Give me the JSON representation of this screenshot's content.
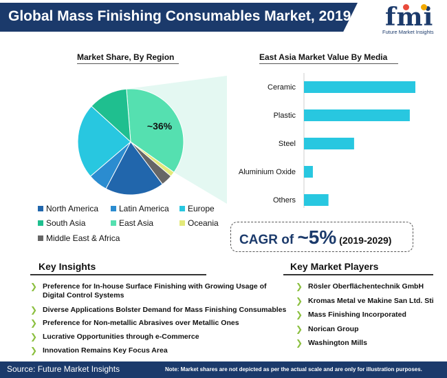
{
  "header": {
    "title": "Global Mass Finishing Consumables Market, 2019",
    "logo_word": "fmi",
    "logo_sub": "Future Market Insights"
  },
  "colors": {
    "brand_navy": "#1b3a6b",
    "north_america": "#2166ac",
    "latin_america": "#2b8cd0",
    "europe": "#28c7e0",
    "south_asia": "#1fbf8f",
    "east_asia": "#55e0b0",
    "oceania": "#e3e97a",
    "middle_east_africa": "#666666",
    "bar": "#28c7e0",
    "chevron": "#8bbf3f"
  },
  "chart_data": [
    {
      "type": "pie",
      "title": "Market Share, By Region",
      "annotation": "~36%",
      "slices": [
        {
          "label": "East Asia",
          "value": 36,
          "color": "#55e0b0"
        },
        {
          "label": "Oceania",
          "value": 1.5,
          "color": "#e3e97a"
        },
        {
          "label": "Middle East & Africa",
          "value": 3.5,
          "color": "#666666"
        },
        {
          "label": "North America",
          "value": 18,
          "color": "#2166ac"
        },
        {
          "label": "Latin America",
          "value": 6,
          "color": "#2b8cd0"
        },
        {
          "label": "Europe",
          "value": 23,
          "color": "#28c7e0"
        },
        {
          "label": "South Asia",
          "value": 12,
          "color": "#1fbf8f"
        }
      ],
      "legend": [
        {
          "label": "North America",
          "color": "#2166ac"
        },
        {
          "label": "Latin America",
          "color": "#2b8cd0"
        },
        {
          "label": "Europe",
          "color": "#28c7e0"
        },
        {
          "label": "South Asia",
          "color": "#1fbf8f"
        },
        {
          "label": "East Asia",
          "color": "#55e0b0"
        },
        {
          "label": "Oceania",
          "color": "#e3e97a"
        },
        {
          "label": "Middle East & Africa",
          "color": "#666666"
        }
      ],
      "legend_placement": "bottom"
    },
    {
      "type": "bar",
      "orientation": "horizontal",
      "title": "East Asia Market Value By Media",
      "categories": [
        "Ceramic",
        "Plastic",
        "Steel",
        "Aluminium Oxide",
        "Others"
      ],
      "values": [
        100,
        95,
        45,
        8,
        22
      ],
      "xlim": [
        0,
        100
      ],
      "grid": false
    }
  ],
  "cagr": {
    "prefix": "CAGR of ",
    "value": "~5%",
    "period": " (2019-2029)"
  },
  "key_insights": {
    "title": "Key Insights",
    "items": [
      "Preference for In-house Surface Finishing with Growing Usage of",
      "Digital Control Systems",
      "Diverse Applications Bolster Demand for Mass Finishing Consumables",
      "Preference for Non-metallic Abrasives over Metallic Ones",
      "Lucrative Opportunities through e-Commerce",
      "Innovation Remains Key Focus Area"
    ]
  },
  "key_players": {
    "title": "Key Market Players",
    "items": [
      "Rösler Oberflächentechnik GmbH",
      "Kromas Metal ve Makine San Ltd. Sti",
      "Mass Finishing Incorporated",
      "Norican Group",
      "Washington Mills"
    ]
  },
  "footer": {
    "source": "Source: Future Market Insights",
    "note": "Note: Market shares are not depicted as per the actual scale and are only for illustration purposes."
  }
}
